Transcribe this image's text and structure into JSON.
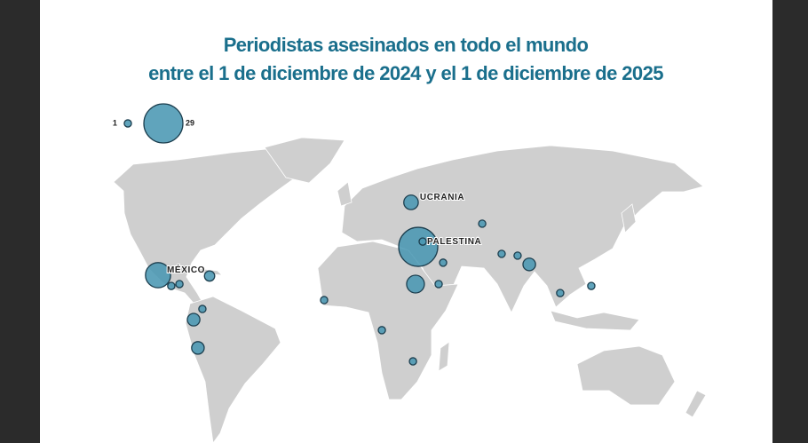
{
  "title": [
    "Periodistas asesinados en todo el mundo",
    "entre el 1 de diciembre de 2024 y el 1 de diciembre de 2025"
  ],
  "legend": {
    "min": 1,
    "max": 29
  },
  "points": [
    {
      "lon": 34.8,
      "lat": 31.9,
      "value": 29,
      "label": "PALESTINA"
    },
    {
      "lon": 37.1,
      "lat": 34.2,
      "value": 1
    },
    {
      "lon": 31.1,
      "lat": 50.0,
      "value": 4,
      "label": "UCRANIA"
    },
    {
      "lon": -99.0,
      "lat": 19.0,
      "value": 12,
      "label": "MÉXICO"
    },
    {
      "lon": -92.2,
      "lat": 13.9,
      "value": 1
    },
    {
      "lon": -88.0,
      "lat": 14.8,
      "value": 1
    },
    {
      "lon": -72.5,
      "lat": 18.6,
      "value": 2
    },
    {
      "lon": -76.2,
      "lat": 2.8,
      "value": 1
    },
    {
      "lon": -80.7,
      "lat": -2.4,
      "value": 3
    },
    {
      "lon": -78.5,
      "lat": -16.0,
      "value": 3
    },
    {
      "lon": -13.6,
      "lat": 7.1,
      "value": 1
    },
    {
      "lon": 16.1,
      "lat": -7.5,
      "value": 1
    },
    {
      "lon": 32.1,
      "lat": -22.3,
      "value": 1
    },
    {
      "lon": 33.4,
      "lat": 14.8,
      "value": 6
    },
    {
      "lon": 45.3,
      "lat": 14.8,
      "value": 1
    },
    {
      "lon": 47.6,
      "lat": 24.8,
      "value": 1
    },
    {
      "lon": 67.7,
      "lat": 41.7,
      "value": 1
    },
    {
      "lon": 77.7,
      "lat": 28.8,
      "value": 1
    },
    {
      "lon": 85.9,
      "lat": 28.0,
      "value": 1
    },
    {
      "lon": 91.9,
      "lat": 24.0,
      "value": 3
    },
    {
      "lon": 107.8,
      "lat": 10.5,
      "value": 1
    },
    {
      "lon": 123.8,
      "lat": 13.9,
      "value": 1
    }
  ]
}
